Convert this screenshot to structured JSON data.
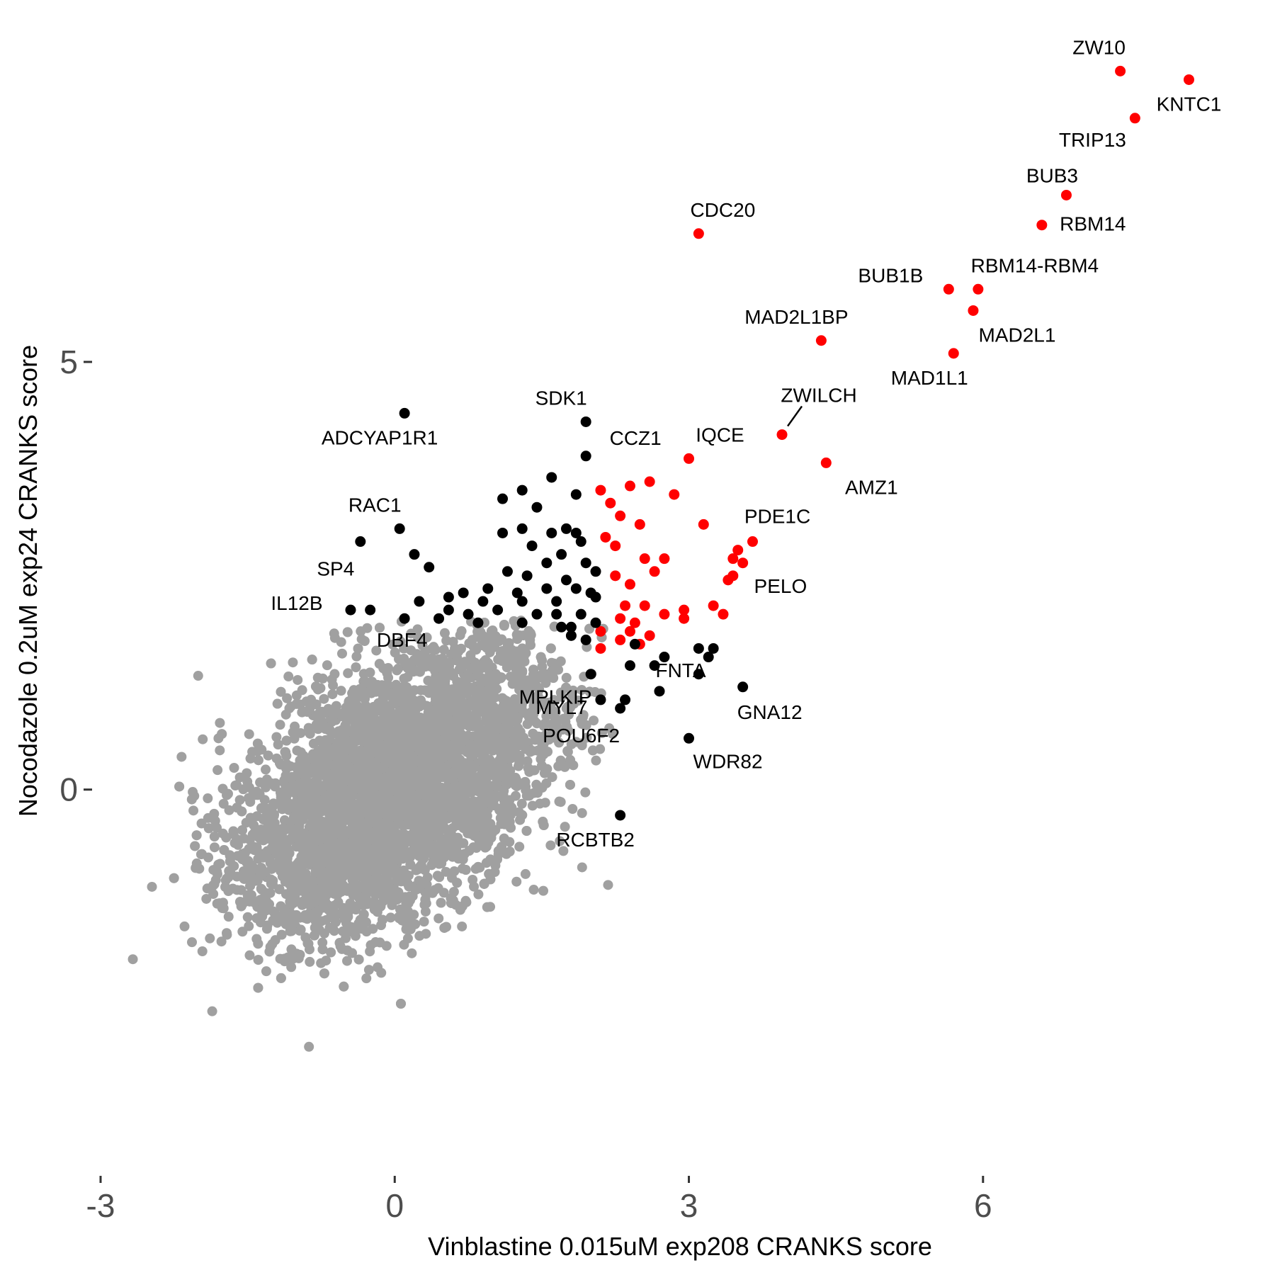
{
  "chart_data": {
    "type": "scatter",
    "xlabel": "Vinblastine 0.015uM exp208 CRANKS score",
    "ylabel": "Nocodazole 0.2uM exp24 CRANKS score",
    "xlim": [
      -3.0,
      8.4
    ],
    "ylim": [
      -4.35,
      8.9
    ],
    "xticks": [
      -3,
      0,
      3,
      6
    ],
    "yticks": [
      0,
      5
    ],
    "grid": false,
    "colors": {
      "background": "#cccccc",
      "red": "#ff0000",
      "black": "#000000",
      "gray": "#a0a0a0"
    },
    "background_cloud": {
      "description_color": "gray",
      "center": [
        0.0,
        0.0
      ],
      "note": "dense cloud of non-hit genes"
    },
    "series": [
      {
        "name": "red",
        "color": "#ff0000",
        "points": [
          {
            "x": 8.1,
            "y": 8.3,
            "label": "KNTC1"
          },
          {
            "x": 7.4,
            "y": 8.4,
            "label": "ZW10"
          },
          {
            "x": 7.55,
            "y": 7.85,
            "label": "TRIP13"
          },
          {
            "x": 6.85,
            "y": 6.95,
            "label": "BUB3"
          },
          {
            "x": 6.6,
            "y": 6.6,
            "label": "RBM14"
          },
          {
            "x": 3.1,
            "y": 6.5,
            "label": "CDC20"
          },
          {
            "x": 5.95,
            "y": 5.85,
            "label": "RBM14-RBM4"
          },
          {
            "x": 5.65,
            "y": 5.85,
            "label": "BUB1B"
          },
          {
            "x": 5.9,
            "y": 5.6,
            "label": "MAD2L1"
          },
          {
            "x": 4.35,
            "y": 5.25,
            "label": "MAD2L1BP"
          },
          {
            "x": 5.7,
            "y": 5.1,
            "label": "MAD1L1"
          },
          {
            "x": 3.95,
            "y": 4.15,
            "label": "ZWILCH"
          },
          {
            "x": 3.0,
            "y": 3.87,
            "label": "IQCE"
          },
          {
            "x": 4.4,
            "y": 3.82,
            "label": "AMZ1"
          },
          {
            "x": 3.65,
            "y": 2.9,
            "label": "PDE1C"
          },
          {
            "x": 3.4,
            "y": 2.45,
            "label": "PELO"
          },
          {
            "x": 2.2,
            "y": 3.35
          },
          {
            "x": 2.4,
            "y": 3.55
          },
          {
            "x": 2.6,
            "y": 3.6
          },
          {
            "x": 2.85,
            "y": 3.45
          },
          {
            "x": 2.1,
            "y": 3.5
          },
          {
            "x": 2.3,
            "y": 3.2
          },
          {
            "x": 2.5,
            "y": 3.1
          },
          {
            "x": 3.15,
            "y": 3.1
          },
          {
            "x": 2.15,
            "y": 2.95
          },
          {
            "x": 2.25,
            "y": 2.85
          },
          {
            "x": 2.55,
            "y": 2.7
          },
          {
            "x": 2.75,
            "y": 2.7
          },
          {
            "x": 2.65,
            "y": 2.55
          },
          {
            "x": 2.25,
            "y": 2.5
          },
          {
            "x": 2.4,
            "y": 2.4
          },
          {
            "x": 2.35,
            "y": 2.15
          },
          {
            "x": 2.55,
            "y": 2.15
          },
          {
            "x": 2.3,
            "y": 2.0
          },
          {
            "x": 2.45,
            "y": 1.95
          },
          {
            "x": 2.75,
            "y": 2.05
          },
          {
            "x": 2.95,
            "y": 2.0
          },
          {
            "x": 3.45,
            "y": 2.7
          },
          {
            "x": 3.5,
            "y": 2.8
          },
          {
            "x": 3.55,
            "y": 2.65
          },
          {
            "x": 3.45,
            "y": 2.5
          },
          {
            "x": 3.25,
            "y": 2.15
          },
          {
            "x": 3.35,
            "y": 2.05
          },
          {
            "x": 2.1,
            "y": 1.85
          },
          {
            "x": 2.4,
            "y": 1.85
          },
          {
            "x": 2.6,
            "y": 1.8
          },
          {
            "x": 2.3,
            "y": 1.75
          },
          {
            "x": 2.5,
            "y": 1.7
          },
          {
            "x": 2.95,
            "y": 2.1
          },
          {
            "x": 2.1,
            "y": 1.65
          }
        ]
      },
      {
        "name": "black",
        "color": "#000000",
        "points": [
          {
            "x": 0.1,
            "y": 4.4,
            "label": "ADCYAP1R1"
          },
          {
            "x": 1.95,
            "y": 4.3,
            "label": "SDK1"
          },
          {
            "x": 1.95,
            "y": 3.9,
            "label": "CCZ1"
          },
          {
            "x": 0.05,
            "y": 3.05,
            "label": "RAC1"
          },
          {
            "x": -0.35,
            "y": 2.9,
            "label": "SP4"
          },
          {
            "x": -0.45,
            "y": 2.1,
            "label": "IL12B"
          },
          {
            "x": -0.25,
            "y": 2.1,
            "label": "DBF4"
          },
          {
            "x": 2.0,
            "y": 1.35,
            "label": "MPLKIP"
          },
          {
            "x": 2.1,
            "y": 1.05,
            "label": "MYL7"
          },
          {
            "x": 2.7,
            "y": 1.15,
            "label": "FNTA"
          },
          {
            "x": 2.3,
            "y": 0.95,
            "label": "POU6F2"
          },
          {
            "x": 3.55,
            "y": 1.2,
            "label": "GNA12"
          },
          {
            "x": 3.0,
            "y": 0.6,
            "label": "WDR82"
          },
          {
            "x": 2.3,
            "y": -0.3,
            "label": "RCBTB2"
          },
          {
            "x": 1.6,
            "y": 3.65
          },
          {
            "x": 1.85,
            "y": 3.45
          },
          {
            "x": 1.3,
            "y": 3.5
          },
          {
            "x": 1.1,
            "y": 3.4
          },
          {
            "x": 1.45,
            "y": 3.3
          },
          {
            "x": 1.75,
            "y": 3.05
          },
          {
            "x": 1.6,
            "y": 3.0
          },
          {
            "x": 1.3,
            "y": 3.05
          },
          {
            "x": 1.1,
            "y": 3.0
          },
          {
            "x": 1.85,
            "y": 3.0
          },
          {
            "x": 1.9,
            "y": 2.9
          },
          {
            "x": 1.4,
            "y": 2.85
          },
          {
            "x": 1.7,
            "y": 2.75
          },
          {
            "x": 1.55,
            "y": 2.65
          },
          {
            "x": 1.95,
            "y": 2.65
          },
          {
            "x": 2.05,
            "y": 2.55
          },
          {
            "x": 1.35,
            "y": 2.5
          },
          {
            "x": 1.15,
            "y": 2.55
          },
          {
            "x": 1.75,
            "y": 2.45
          },
          {
            "x": 0.95,
            "y": 2.35
          },
          {
            "x": 1.25,
            "y": 2.3
          },
          {
            "x": 1.55,
            "y": 2.35
          },
          {
            "x": 1.85,
            "y": 2.35
          },
          {
            "x": 2.0,
            "y": 2.3
          },
          {
            "x": 0.7,
            "y": 2.3
          },
          {
            "x": 0.55,
            "y": 2.25
          },
          {
            "x": 0.9,
            "y": 2.2
          },
          {
            "x": 1.3,
            "y": 2.2
          },
          {
            "x": 1.65,
            "y": 2.2
          },
          {
            "x": 2.05,
            "y": 2.25
          },
          {
            "x": 0.55,
            "y": 2.1
          },
          {
            "x": 0.75,
            "y": 2.05
          },
          {
            "x": 1.05,
            "y": 2.1
          },
          {
            "x": 1.45,
            "y": 2.05
          },
          {
            "x": 1.65,
            "y": 2.05
          },
          {
            "x": 1.9,
            "y": 2.05
          },
          {
            "x": 0.25,
            "y": 2.2
          },
          {
            "x": 0.2,
            "y": 2.75
          },
          {
            "x": 0.35,
            "y": 2.6
          },
          {
            "x": 0.45,
            "y": 2.0
          },
          {
            "x": 0.85,
            "y": 1.95
          },
          {
            "x": 1.3,
            "y": 1.95
          },
          {
            "x": 1.7,
            "y": 1.9
          },
          {
            "x": 2.05,
            "y": 1.95
          },
          {
            "x": 0.1,
            "y": 2.0
          },
          {
            "x": 1.8,
            "y": 1.8
          },
          {
            "x": 2.45,
            "y": 1.7
          },
          {
            "x": 2.75,
            "y": 1.55
          },
          {
            "x": 3.1,
            "y": 1.65
          },
          {
            "x": 3.2,
            "y": 1.55
          },
          {
            "x": 3.25,
            "y": 1.65
          },
          {
            "x": 2.65,
            "y": 1.45
          },
          {
            "x": 2.4,
            "y": 1.45
          },
          {
            "x": 3.1,
            "y": 1.35
          },
          {
            "x": 2.35,
            "y": 1.05
          },
          {
            "x": 1.8,
            "y": 1.9
          },
          {
            "x": 1.95,
            "y": 1.75
          }
        ]
      }
    ]
  }
}
